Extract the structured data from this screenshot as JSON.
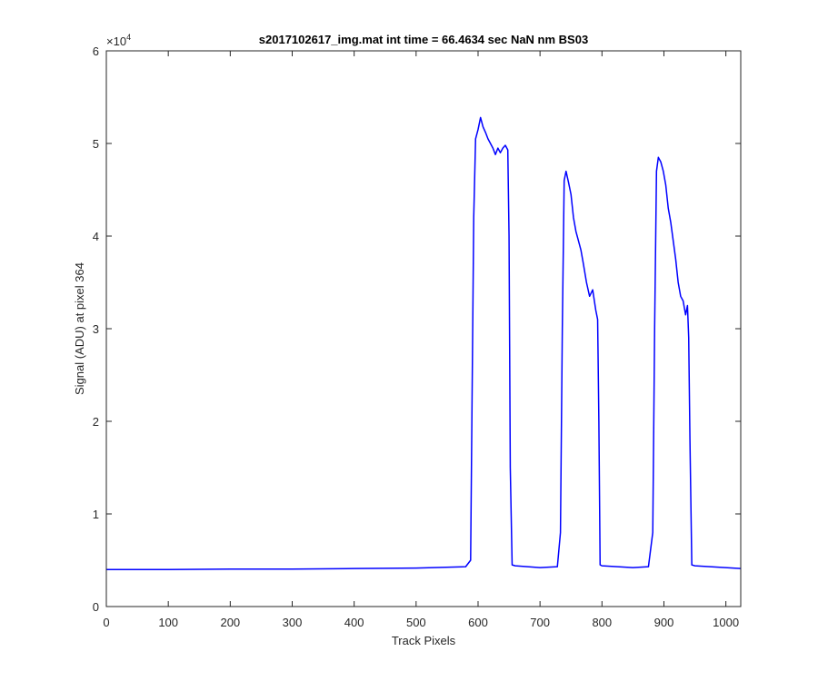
{
  "chart_data": {
    "type": "line",
    "title": "s2017102617_img.mat int time = 66.4634 sec  NaN nm BS03",
    "xlabel": "Track Pixels",
    "ylabel": "Signal (ADU) at pixel 364",
    "xlim": [
      0,
      1024
    ],
    "ylim": [
      0,
      60000
    ],
    "xticks": [
      "0",
      "100",
      "200",
      "300",
      "400",
      "500",
      "600",
      "700",
      "800",
      "900",
      "1000"
    ],
    "yticks": [
      "0",
      "1",
      "2",
      "3",
      "4",
      "5",
      "6"
    ],
    "y_exponent": {
      "base": "×10",
      "power": "4"
    },
    "grid": false,
    "line_color": "#0000ff",
    "series": [
      {
        "x": [
          0,
          100,
          200,
          300,
          400,
          500,
          580,
          588,
          590,
          593,
          596,
          600,
          604,
          608,
          612,
          616,
          620,
          624,
          628,
          632,
          636,
          640,
          644,
          648,
          650,
          652,
          655,
          660,
          700,
          728,
          733,
          736,
          739,
          742,
          746,
          750,
          754,
          758,
          762,
          766,
          770,
          775,
          780,
          785,
          790,
          793,
          795,
          797,
          800,
          850,
          875,
          882,
          885,
          888,
          891,
          895,
          899,
          903,
          907,
          911,
          915,
          919,
          923,
          927,
          931,
          935,
          938,
          940,
          942,
          945,
          950,
          1024
        ],
        "y": [
          4000,
          4000,
          4050,
          4050,
          4100,
          4150,
          4300,
          5000,
          20000,
          42000,
          50500,
          51500,
          52800,
          51800,
          51200,
          50500,
          50000,
          49500,
          48800,
          49500,
          49000,
          49500,
          49800,
          49300,
          40000,
          15000,
          4500,
          4400,
          4200,
          4300,
          8000,
          30000,
          46000,
          47000,
          45800,
          44500,
          42000,
          40500,
          39500,
          38500,
          37000,
          35000,
          33500,
          34200,
          32000,
          31000,
          20000,
          4500,
          4400,
          4200,
          4300,
          8000,
          30000,
          47000,
          48500,
          48000,
          47000,
          45500,
          43000,
          41500,
          39500,
          37500,
          35000,
          33500,
          33000,
          31500,
          32500,
          29000,
          18000,
          4500,
          4400,
          4100
        ]
      }
    ]
  }
}
